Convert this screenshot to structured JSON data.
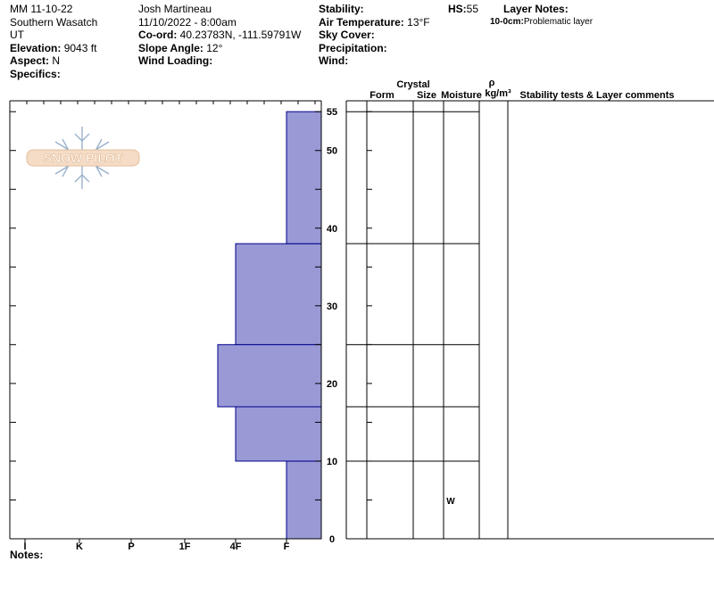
{
  "header": {
    "title": "MM 11-10-22",
    "range": "Southern Wasatch",
    "state": "UT",
    "elevation_label": "Elevation:",
    "elevation_value": "9043 ft",
    "aspect_label": "Aspect:",
    "aspect_value": "N",
    "specifics_label": "Specifics:",
    "observer": "Josh Martineau",
    "datetime": "11/10/2022 - 8:00am",
    "coord_label": "Co-ord:",
    "coord_value": "40.23783N, -111.59791W",
    "slope_label": "Slope Angle:",
    "slope_value": "12°",
    "wind_loading_label": "Wind Loading:",
    "stability_label": "Stability:",
    "air_temp_label": "Air Temperature:",
    "air_temp_value": "13°F",
    "sky_cover_label": "Sky Cover:",
    "precip_label": "Precipitation:",
    "wind_label": "Wind:",
    "hs_label": "HS:",
    "hs_value": "55",
    "layer_notes_label": "Layer Notes:",
    "layer_note_depth": "10-0cm:",
    "layer_note_text": "Problematic layer"
  },
  "footer": {
    "notes_label": "Notes:"
  },
  "logo": {
    "text": "SNOW PILOT",
    "icon": "snowflake-icon"
  },
  "table": {
    "col_crystal": "Crystal",
    "col_form": "Form",
    "col_size": "Size",
    "col_moisture": "Moisture",
    "col_rho": "ρ",
    "col_density": "kg/m³",
    "col_comments": "Stability tests & Layer comments",
    "moisture_value": "W"
  },
  "chart_data": {
    "type": "bar",
    "orientation": "horizontal",
    "x_categories": [
      "I",
      "K",
      "P",
      "1F",
      "4F",
      "F"
    ],
    "y_ticks": [
      0,
      10,
      20,
      30,
      40,
      50,
      55
    ],
    "ylim": [
      0,
      56.4
    ],
    "layers": [
      {
        "bottom": 0,
        "top": 10,
        "hardness": "F"
      },
      {
        "bottom": 10,
        "top": 17,
        "hardness": "4F"
      },
      {
        "bottom": 17,
        "top": 25,
        "hardness": "1F-"
      },
      {
        "bottom": 25,
        "top": 38,
        "hardness": "4F"
      },
      {
        "bottom": 38,
        "top": 55,
        "hardness": "F"
      }
    ],
    "bar_color": "#9999d6",
    "bar_stroke": "#00008b"
  }
}
